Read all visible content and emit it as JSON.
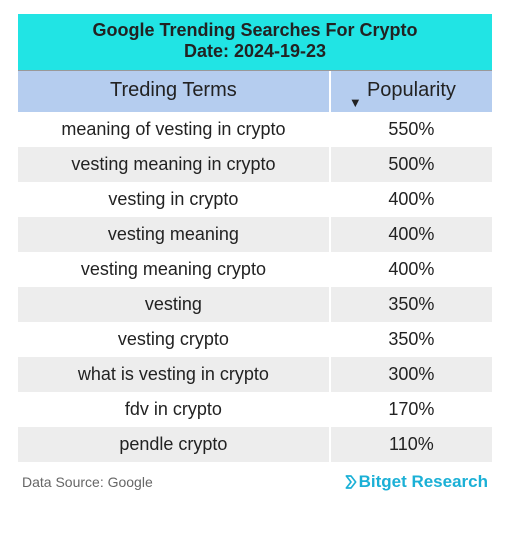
{
  "banner": {
    "title": "Google Trending Searches For Crypto",
    "date_label": "Date:  2024-19-23",
    "background_color": "#21e4e4",
    "title_fontsize": 18
  },
  "table": {
    "type": "table",
    "header_bg": "#b5cdef",
    "row_alt_bg": "#ededed",
    "row_bg": "#ffffff",
    "font_size": 18,
    "columns": [
      "Treding Terms",
      "Popularity"
    ],
    "sort_indicator": "▼",
    "rows": [
      {
        "term": "meaning of vesting in crypto",
        "popularity": "550%"
      },
      {
        "term": "vesting meaning in crypto",
        "popularity": "500%"
      },
      {
        "term": "vesting in crypto",
        "popularity": "400%"
      },
      {
        "term": "vesting meaning",
        "popularity": "400%"
      },
      {
        "term": "vesting meaning crypto",
        "popularity": "400%"
      },
      {
        "term": "vesting",
        "popularity": "350%"
      },
      {
        "term": "vesting crypto",
        "popularity": "350%"
      },
      {
        "term": "what is vesting in crypto",
        "popularity": "300%"
      },
      {
        "term": "fdv in crypto",
        "popularity": "170%"
      },
      {
        "term": "pendle crypto",
        "popularity": "110%"
      }
    ]
  },
  "footer": {
    "source_label": "Data Source: Google",
    "brand": "Bitget Research",
    "brand_color": "#1bb0d6"
  }
}
